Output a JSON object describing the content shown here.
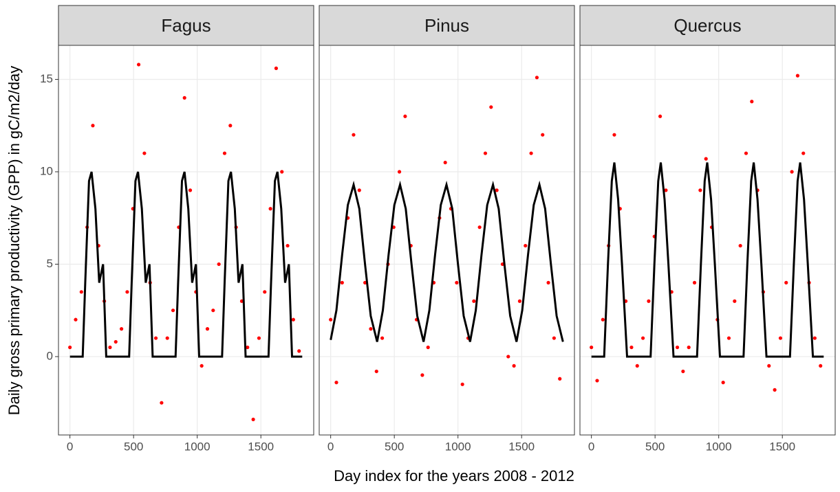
{
  "chart_data": {
    "type": "scatter",
    "x_label": "Day index for the years 2008 - 2012",
    "y_label": "Daily gross primary productivity (GPP) in gC/m2/day",
    "xlim": [
      -90,
      1915
    ],
    "xticks": [
      0,
      500,
      1000,
      1500
    ],
    "ylim": [
      -4.24,
      16.84
    ],
    "yticks": [
      0,
      5,
      10,
      15
    ],
    "grid": true,
    "panels": [
      {
        "title": "Fagus",
        "series": [
          {
            "type": "scatter",
            "color": "#ff0000",
            "x": [
              0,
              45,
              90,
              135,
              180,
              225,
              270,
              315,
              360,
              405,
              450,
              495,
              540,
              585,
              630,
              675,
              720,
              765,
              810,
              855,
              900,
              945,
              990,
              1035,
              1080,
              1125,
              1170,
              1215,
              1260,
              1305,
              1350,
              1395,
              1440,
              1485,
              1530,
              1575,
              1620,
              1665,
              1710,
              1755,
              1800
            ],
            "values": [
              0.5,
              2,
              3.5,
              7,
              12.5,
              6,
              3,
              0.5,
              0.8,
              1.5,
              3.5,
              8,
              15.8,
              11,
              4,
              1,
              -2.5,
              1,
              2.5,
              7,
              14,
              9,
              3.5,
              -0.5,
              1.5,
              2.5,
              5,
              11,
              12.5,
              7,
              3,
              0.5,
              -3.4,
              1,
              3.5,
              8,
              15.6,
              10,
              6,
              2,
              0.3
            ]
          },
          {
            "type": "line",
            "color": "#000000",
            "x": [
              0,
              100,
              120,
              150,
              170,
              200,
              230,
              260,
              285,
              365,
              465,
              485,
              515,
              535,
              565,
              595,
              625,
              650,
              730,
              830,
              850,
              880,
              900,
              930,
              960,
              990,
              1015,
              1095,
              1195,
              1215,
              1245,
              1265,
              1295,
              1325,
              1355,
              1380,
              1460,
              1560,
              1580,
              1610,
              1630,
              1660,
              1690,
              1720,
              1745,
              1825
            ],
            "values": [
              0,
              0,
              4,
              9.5,
              10,
              8,
              4,
              5,
              0,
              0,
              0,
              4,
              9.5,
              10,
              8,
              4,
              5,
              0,
              0,
              0,
              4,
              9.5,
              10,
              8,
              4,
              5,
              0,
              0,
              0,
              4,
              9.5,
              10,
              8,
              4,
              5,
              0,
              0,
              0,
              4,
              9.5,
              10,
              8,
              4,
              5,
              0,
              0
            ]
          }
        ]
      },
      {
        "title": "Pinus",
        "series": [
          {
            "type": "scatter",
            "color": "#ff0000",
            "x": [
              0,
              45,
              90,
              135,
              180,
              225,
              270,
              315,
              360,
              405,
              450,
              495,
              540,
              585,
              630,
              675,
              720,
              765,
              810,
              855,
              900,
              945,
              990,
              1035,
              1080,
              1125,
              1170,
              1215,
              1260,
              1305,
              1350,
              1395,
              1440,
              1485,
              1530,
              1575,
              1620,
              1665,
              1710,
              1755,
              1800
            ],
            "values": [
              2,
              -1.4,
              4,
              7.5,
              12,
              9,
              4,
              1.5,
              -0.8,
              1,
              5,
              7,
              10,
              13,
              6,
              2,
              -1,
              0.5,
              4,
              7.5,
              10.5,
              8,
              4,
              -1.5,
              1,
              3,
              7,
              11,
              13.5,
              9,
              5,
              0,
              -0.5,
              3,
              6,
              11,
              15.1,
              12,
              4,
              1,
              -1.2
            ]
          },
          {
            "type": "line",
            "color": "#000000",
            "x": [
              0,
              45,
              90,
              135,
              180,
              225,
              270,
              315,
              365,
              410,
              455,
              500,
              545,
              590,
              635,
              680,
              730,
              775,
              820,
              865,
              910,
              955,
              1000,
              1045,
              1095,
              1140,
              1185,
              1230,
              1275,
              1320,
              1365,
              1410,
              1460,
              1505,
              1550,
              1595,
              1640,
              1685,
              1730,
              1775,
              1825
            ],
            "values": [
              0.9,
              2.5,
              5.5,
              8.2,
              9.3,
              8,
              5,
              2.2,
              0.8,
              2.5,
              5.5,
              8.2,
              9.3,
              8,
              5,
              2.2,
              0.8,
              2.5,
              5.5,
              8.2,
              9.3,
              8,
              5,
              2.2,
              0.8,
              2.5,
              5.5,
              8.2,
              9.3,
              8,
              5,
              2.2,
              0.8,
              2.5,
              5.5,
              8.2,
              9.3,
              8,
              5,
              2.2,
              0.8
            ]
          }
        ]
      },
      {
        "title": "Quercus",
        "series": [
          {
            "type": "scatter",
            "color": "#ff0000",
            "x": [
              0,
              45,
              90,
              135,
              180,
              225,
              270,
              315,
              360,
              405,
              450,
              495,
              540,
              585,
              630,
              675,
              720,
              765,
              810,
              855,
              900,
              945,
              990,
              1035,
              1080,
              1125,
              1170,
              1215,
              1260,
              1305,
              1350,
              1395,
              1440,
              1485,
              1530,
              1575,
              1620,
              1665,
              1710,
              1755,
              1800
            ],
            "values": [
              0.5,
              -1.3,
              2,
              6,
              12,
              8,
              3,
              0.5,
              -0.5,
              1,
              3,
              6.5,
              13,
              9,
              3.5,
              0.5,
              -0.8,
              0.5,
              4,
              9,
              10.7,
              7,
              2,
              -1.4,
              1,
              3,
              6,
              11,
              13.8,
              9,
              3.5,
              -0.5,
              -1.8,
              1,
              4,
              10,
              15.2,
              11,
              4,
              1,
              -0.5
            ]
          },
          {
            "type": "line",
            "color": "#000000",
            "x": [
              0,
              100,
              130,
              160,
              180,
              210,
              240,
              280,
              365,
              465,
              495,
              525,
              545,
              575,
              605,
              645,
              730,
              830,
              860,
              890,
              910,
              940,
              970,
              1010,
              1095,
              1195,
              1225,
              1255,
              1275,
              1305,
              1335,
              1375,
              1460,
              1560,
              1590,
              1620,
              1640,
              1670,
              1700,
              1740,
              1825
            ],
            "values": [
              0,
              0,
              5,
              9.5,
              10.5,
              8.5,
              5,
              0,
              0,
              0,
              5,
              9.5,
              10.5,
              8.5,
              5,
              0,
              0,
              0,
              5,
              9.5,
              10.5,
              8.5,
              5,
              0,
              0,
              0,
              5,
              9.5,
              10.5,
              8.5,
              5,
              0,
              0,
              0,
              5,
              9.5,
              10.5,
              8.5,
              5,
              0,
              0
            ]
          }
        ]
      }
    ]
  }
}
